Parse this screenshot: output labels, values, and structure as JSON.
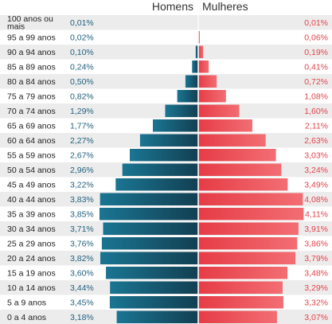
{
  "chart_data": {
    "type": "bar",
    "subtype": "population-pyramid",
    "title": "",
    "xlabel": "",
    "ylabel": "",
    "legend_position": "top-center",
    "xlim": [
      0,
      4.3
    ],
    "colors": {
      "men": "#1d5f7a",
      "women": "#e8474f",
      "men_text": "#1f5f7e",
      "women_text": "#e4434b",
      "stripe": "#ececec"
    },
    "categories": [
      "100 anos ou mais",
      "95 a 99 anos",
      "90 a 94 anos",
      "85 a 89 anos",
      "80 a 84 anos",
      "75 a 79 anos",
      "70 a 74 anos",
      "65 a 69 anos",
      "60 a 64 anos",
      "55 a 59 anos",
      "50 a 54 anos",
      "45 a 49 anos",
      "40 a 44 anos",
      "35 a 39 anos",
      "30 a 34 anos",
      "25 a 29 anos",
      "20 a 24 anos",
      "15 a 19 anos",
      "10 a 14 anos",
      "5 a 9 anos",
      "0 a 4 anos"
    ],
    "series": [
      {
        "name": "Homens",
        "values": [
          0.01,
          0.02,
          0.1,
          0.24,
          0.5,
          0.82,
          1.29,
          1.77,
          2.27,
          2.67,
          2.96,
          3.22,
          3.83,
          3.85,
          3.71,
          3.76,
          3.82,
          3.6,
          3.44,
          3.45,
          3.18
        ],
        "labels": [
          "0,01%",
          "0,02%",
          "0,10%",
          "0,24%",
          "0,50%",
          "0,82%",
          "1,29%",
          "1,77%",
          "2,27%",
          "2,67%",
          "2,96%",
          "3,22%",
          "3,83%",
          "3,85%",
          "3,71%",
          "3,76%",
          "3,82%",
          "3,60%",
          "3,44%",
          "3,45%",
          "3,18%"
        ]
      },
      {
        "name": "Mulheres",
        "values": [
          0.01,
          0.06,
          0.19,
          0.41,
          0.72,
          1.08,
          1.6,
          2.11,
          2.63,
          3.03,
          3.24,
          3.49,
          4.08,
          4.11,
          3.91,
          3.86,
          3.79,
          3.48,
          3.29,
          3.32,
          3.07
        ],
        "labels": [
          "0,01%",
          "0,06%",
          "0,19%",
          "0,41%",
          "0,72%",
          "1,08%",
          "1,60%",
          "2,11%",
          "2,63%",
          "3,03%",
          "3,24%",
          "3,49%",
          "4,08%",
          "4,11%",
          "3,91%",
          "3,86%",
          "3,79%",
          "3,48%",
          "3,29%",
          "3,32%",
          "3,07%"
        ]
      }
    ]
  }
}
